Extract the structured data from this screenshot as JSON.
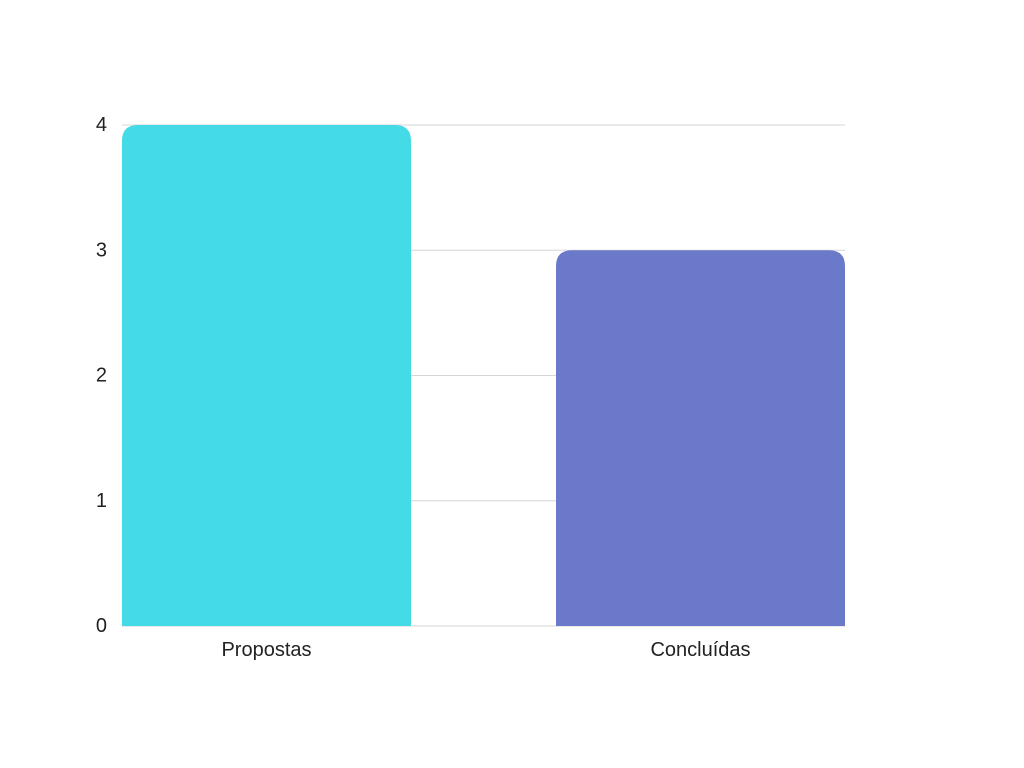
{
  "chart_data": {
    "type": "bar",
    "title": "",
    "xlabel": "",
    "ylabel": "",
    "categories": [
      "Propostas",
      "Concluídas"
    ],
    "values": [
      4,
      3
    ],
    "colors": [
      "#44dbe6",
      "#6a79c9"
    ],
    "ylim": [
      0,
      4
    ],
    "yticks": [
      "0",
      "1",
      "2",
      "3",
      "4"
    ],
    "grid": true,
    "legend": "none"
  }
}
